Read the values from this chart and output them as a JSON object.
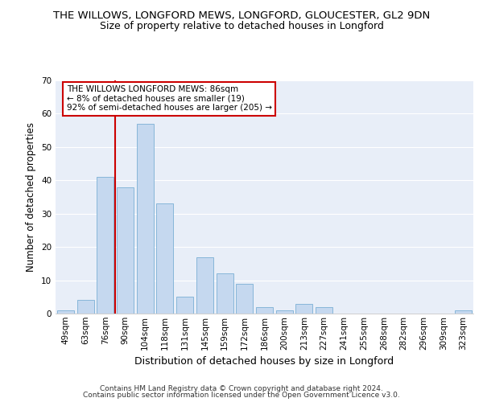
{
  "title_line1": "THE WILLOWS, LONGFORD MEWS, LONGFORD, GLOUCESTER, GL2 9DN",
  "title_line2": "Size of property relative to detached houses in Longford",
  "xlabel": "Distribution of detached houses by size in Longford",
  "ylabel": "Number of detached properties",
  "footer_line1": "Contains HM Land Registry data © Crown copyright and database right 2024.",
  "footer_line2": "Contains public sector information licensed under the Open Government Licence v3.0.",
  "categories": [
    "49sqm",
    "63sqm",
    "76sqm",
    "90sqm",
    "104sqm",
    "118sqm",
    "131sqm",
    "145sqm",
    "159sqm",
    "172sqm",
    "186sqm",
    "200sqm",
    "213sqm",
    "227sqm",
    "241sqm",
    "255sqm",
    "268sqm",
    "282sqm",
    "296sqm",
    "309sqm",
    "323sqm"
  ],
  "values": [
    1,
    4,
    41,
    38,
    57,
    33,
    5,
    17,
    12,
    9,
    2,
    1,
    3,
    2,
    0,
    0,
    0,
    0,
    0,
    0,
    1
  ],
  "bar_color": "#c5d8ef",
  "bar_edge_color": "#7aafd4",
  "annotation_title": "THE WILLOWS LONGFORD MEWS: 86sqm",
  "annotation_line2": "← 8% of detached houses are smaller (19)",
  "annotation_line3": "92% of semi-detached houses are larger (205) →",
  "ylim": [
    0,
    70
  ],
  "yticks": [
    0,
    10,
    20,
    30,
    40,
    50,
    60,
    70
  ],
  "background_color": "#e8eef8",
  "grid_color": "#ffffff",
  "annotation_box_color": "#ffffff",
  "annotation_box_edge": "#cc0000",
  "red_line_color": "#cc0000",
  "title_fontsize": 9.5,
  "subtitle_fontsize": 9,
  "ylabel_fontsize": 8.5,
  "xlabel_fontsize": 9,
  "tick_fontsize": 7.5,
  "annotation_fontsize": 7.5,
  "footer_fontsize": 6.5
}
